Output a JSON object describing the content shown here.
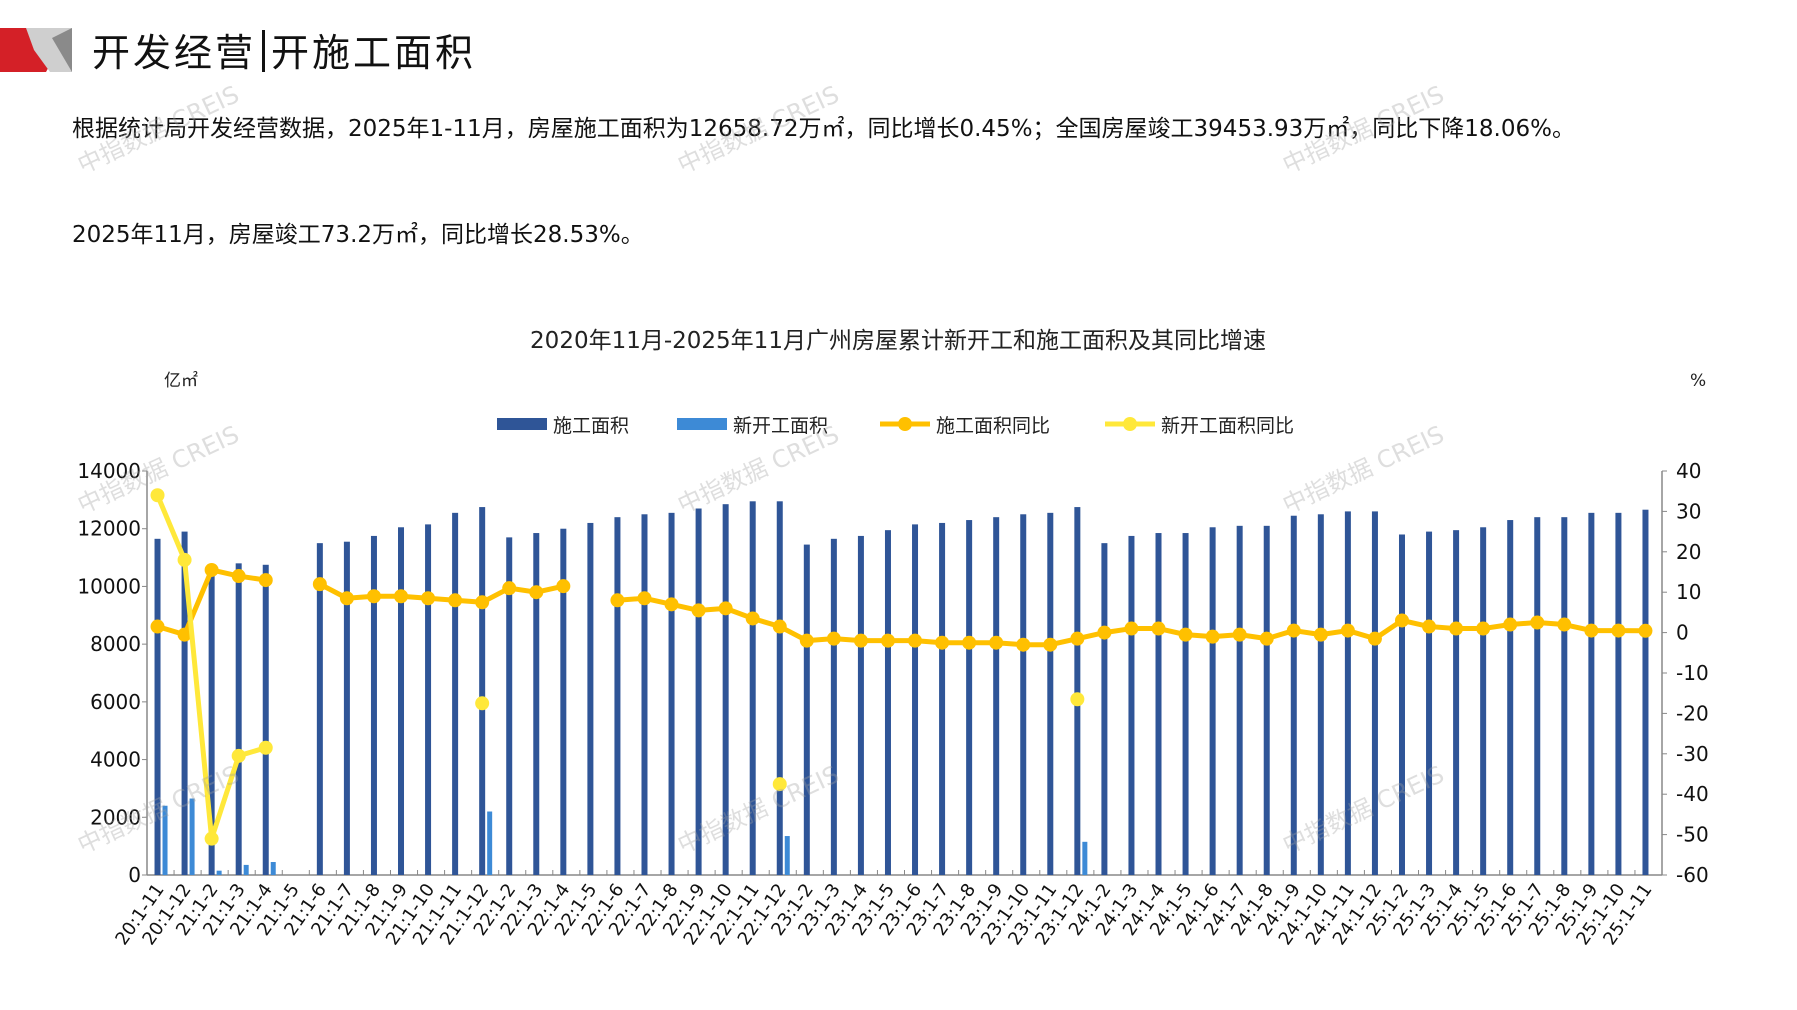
{
  "header": {
    "title_left": "开发经营",
    "title_right": "开施工面积"
  },
  "paragraphs": [
    "根据统计局开发经营数据，2025年1-11月，房屋施工面积为12658.72万㎡，同比增长0.45%；全国房屋竣工39453.93万㎡，同比下降18.06%。",
    "2025年11月，房屋竣工73.2万㎡，同比增长28.53%。"
  ],
  "watermark": "中指数据 CREIS",
  "chart_data": {
    "type": "bar",
    "title": "2020年11月-2025年11月广州房屋累计新开工和施工面积及其同比增速",
    "ylabel_left": "亿㎡",
    "ylabel_right": "%",
    "ylim_left": [
      0,
      14000
    ],
    "ylim_right": [
      -60,
      40
    ],
    "yticks_left": [
      0,
      2000,
      4000,
      6000,
      8000,
      10000,
      12000,
      14000
    ],
    "yticks_right": [
      -60,
      -50,
      -40,
      -30,
      -20,
      -10,
      0,
      10,
      20,
      30,
      40
    ],
    "legend_position": "top-center",
    "grid": false,
    "categories": [
      "20:1-11",
      "20:1-12",
      "21:1-2",
      "21:1-3",
      "21:1-4",
      "21:1-5",
      "21:1-6",
      "21:1-7",
      "21:1-8",
      "21:1-9",
      "21:1-10",
      "21:1-11",
      "21:1-12",
      "22:1-2",
      "22:1-3",
      "22:1-4",
      "22:1-5",
      "22:1-6",
      "22:1-7",
      "22:1-8",
      "22:1-9",
      "22:1-10",
      "22:1-11",
      "22:1-12",
      "23:1-2",
      "23:1-3",
      "23:1-4",
      "23:1-5",
      "23:1-6",
      "23:1-7",
      "23:1-8",
      "23:1-9",
      "23:1-10",
      "23:1-11",
      "23:1-12",
      "24:1-2",
      "24:1-3",
      "24:1-4",
      "24:1-5",
      "24:1-6",
      "24:1-7",
      "24:1-8",
      "24:1-9",
      "24:1-10",
      "24:1-11",
      "24:1-12",
      "25:1-2",
      "25:1-3",
      "25:1-4",
      "25:1-5",
      "25:1-6",
      "25:1-7",
      "25:1-8",
      "25:1-9",
      "25:1-10",
      "25:1-11"
    ],
    "series": [
      {
        "name": "施工面积",
        "kind": "bar",
        "axis": "left",
        "color": "#2f5597",
        "values": [
          11650,
          11900,
          10400,
          10800,
          10750,
          null,
          11500,
          11550,
          11750,
          12050,
          12150,
          12550,
          12750,
          11700,
          11850,
          12000,
          12200,
          12400,
          12500,
          12550,
          12700,
          12850,
          12950,
          12950,
          11450,
          11650,
          11750,
          11950,
          12150,
          12200,
          12300,
          12400,
          12500,
          12550,
          12750,
          11500,
          11750,
          11850,
          11850,
          12050,
          12100,
          12100,
          12450,
          12500,
          12600,
          12600,
          11800,
          11900,
          11950,
          12050,
          12300,
          12400,
          12400,
          12550,
          12550,
          12658.72
        ]
      },
      {
        "name": "新开工面积",
        "kind": "bar",
        "axis": "left",
        "color": "#3d8ad6",
        "values": [
          2400,
          2650,
          150,
          350,
          450,
          null,
          null,
          null,
          null,
          null,
          null,
          null,
          2200,
          null,
          null,
          null,
          null,
          null,
          null,
          null,
          null,
          null,
          null,
          1350,
          null,
          null,
          null,
          null,
          null,
          null,
          null,
          null,
          null,
          null,
          1150,
          null,
          null,
          null,
          null,
          null,
          null,
          null,
          null,
          null,
          null,
          null,
          null,
          null,
          null,
          null,
          null,
          null,
          null,
          null,
          null,
          null
        ]
      },
      {
        "name": "施工面积同比",
        "kind": "line",
        "axis": "right",
        "color": "#ffc000",
        "values": [
          1.5,
          -0.5,
          15.5,
          14,
          13,
          null,
          12,
          8.5,
          9,
          9,
          8.5,
          8,
          7.5,
          11,
          10,
          11.5,
          null,
          8,
          8.5,
          7,
          5.5,
          6,
          3.5,
          1.5,
          -2,
          -1.5,
          -2,
          -2,
          -2,
          -2.5,
          -2.5,
          -2.5,
          -3,
          -3,
          -1.5,
          0,
          1,
          1,
          -0.5,
          -1,
          -0.5,
          -1.5,
          0.5,
          -0.5,
          0.5,
          -1.5,
          3,
          1.5,
          1,
          1,
          2,
          2.5,
          2,
          0.5,
          0.5,
          0.45
        ]
      },
      {
        "name": "新开工面积同比",
        "kind": "line",
        "axis": "right",
        "color": "#ffe83a",
        "values": [
          34,
          18,
          -51,
          -30.5,
          -28.5,
          null,
          null,
          null,
          null,
          null,
          null,
          null,
          -17.5,
          null,
          null,
          null,
          null,
          null,
          null,
          null,
          null,
          null,
          null,
          -37.5,
          null,
          null,
          null,
          null,
          null,
          null,
          null,
          null,
          null,
          null,
          -16.5,
          null,
          null,
          null,
          null,
          null,
          null,
          null,
          null,
          null,
          null,
          null,
          null,
          null,
          null,
          null,
          null,
          null,
          null,
          null,
          null,
          null
        ]
      }
    ]
  }
}
